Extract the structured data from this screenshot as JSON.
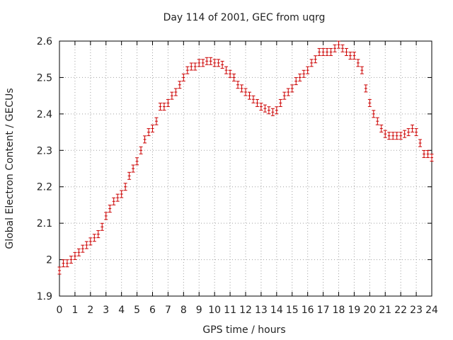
{
  "chart_data": {
    "type": "scatter",
    "title": "Day 114 of 2001, GEC from uqrg",
    "xlabel": "GPS time / hours",
    "ylabel": "Global Electron Content / GECUs",
    "xlim": [
      0,
      24
    ],
    "ylim": [
      1.9,
      2.6
    ],
    "x_ticks": [
      "0",
      "1",
      "2",
      "3",
      "4",
      "5",
      "6",
      "7",
      "8",
      "9",
      "10",
      "11",
      "12",
      "13",
      "14",
      "15",
      "16",
      "17",
      "18",
      "19",
      "20",
      "21",
      "22",
      "23",
      "24"
    ],
    "y_ticks": [
      "1.9",
      "2",
      "2.1",
      "2.2",
      "2.3",
      "2.4",
      "2.5",
      "2.6"
    ],
    "grid": true,
    "error_bars": true,
    "color": "#cc0000",
    "series": [
      {
        "x": [
          0,
          0.25,
          0.5,
          0.75,
          1,
          1.25,
          1.5,
          1.75,
          2,
          2.25,
          2.5,
          2.75,
          3,
          3.25,
          3.5,
          3.75,
          4,
          4.25,
          4.5,
          4.75,
          5,
          5.25,
          5.5,
          5.75,
          6,
          6.25,
          6.5,
          6.75,
          7,
          7.25,
          7.5,
          7.75,
          8,
          8.25,
          8.5,
          8.75,
          9,
          9.25,
          9.5,
          9.75,
          10,
          10.25,
          10.5,
          10.75,
          11,
          11.25,
          11.5,
          11.75,
          12,
          12.25,
          12.5,
          12.75,
          13,
          13.25,
          13.5,
          13.75,
          14,
          14.25,
          14.5,
          14.75,
          15,
          15.25,
          15.5,
          15.75,
          16,
          16.25,
          16.5,
          16.75,
          17,
          17.25,
          17.5,
          17.75,
          18,
          18.25,
          18.5,
          18.75,
          19,
          19.25,
          19.5,
          19.75,
          20,
          20.25,
          20.5,
          20.75,
          21,
          21.25,
          21.5,
          21.75,
          22,
          22.25,
          22.5,
          22.75,
          23,
          23.25,
          23.5,
          23.75,
          24
        ],
        "y": [
          1.97,
          1.99,
          1.99,
          2.0,
          2.01,
          2.02,
          2.03,
          2.04,
          2.05,
          2.06,
          2.07,
          2.09,
          2.12,
          2.14,
          2.16,
          2.17,
          2.18,
          2.2,
          2.23,
          2.25,
          2.27,
          2.3,
          2.33,
          2.35,
          2.36,
          2.38,
          2.42,
          2.42,
          2.43,
          2.45,
          2.46,
          2.48,
          2.5,
          2.52,
          2.53,
          2.53,
          2.54,
          2.54,
          2.545,
          2.545,
          2.54,
          2.54,
          2.535,
          2.52,
          2.51,
          2.5,
          2.48,
          2.47,
          2.46,
          2.45,
          2.44,
          2.43,
          2.42,
          2.415,
          2.41,
          2.405,
          2.41,
          2.43,
          2.45,
          2.46,
          2.47,
          2.49,
          2.5,
          2.51,
          2.52,
          2.54,
          2.55,
          2.57,
          2.57,
          2.57,
          2.57,
          2.58,
          2.59,
          2.58,
          2.57,
          2.56,
          2.56,
          2.54,
          2.52,
          2.47,
          2.43,
          2.4,
          2.38,
          2.36,
          2.345,
          2.34,
          2.34,
          2.34,
          2.34,
          2.345,
          2.35,
          2.36,
          2.35,
          2.32,
          2.29,
          2.29,
          2.28
        ]
      }
    ]
  }
}
